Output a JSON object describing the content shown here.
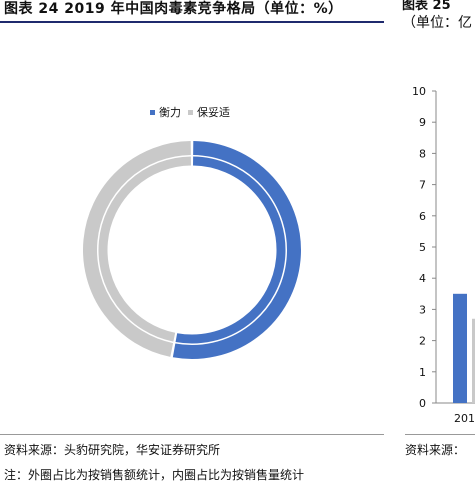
{
  "left_figure": {
    "title": "图表 24 2019 年中国肉毒素竞争格局（单位：%）"
  },
  "right_figure": {
    "title": "图表 25",
    "unit": "（单位：亿"
  },
  "chart_data": [
    {
      "type": "pie",
      "variant": "donut",
      "title": "图表 24 2019 年中国肉毒素竞争格局（单位：%）",
      "legend_position": "top",
      "series": [
        {
          "name": "衡力",
          "value": 53,
          "color": "#4472c4"
        },
        {
          "name": "保妥适",
          "value": 47,
          "color": "#c9c9c9"
        }
      ]
    },
    {
      "type": "bar",
      "categories": [
        "201"
      ],
      "series": [
        {
          "values": [
            3.5
          ],
          "color": "#4472c4"
        },
        {
          "values": [
            2.7
          ],
          "color": "#c9c9c9"
        }
      ],
      "ylim": [
        0,
        10
      ],
      "yticks": [
        "0",
        "1",
        "2",
        "3",
        "4",
        "5",
        "6",
        "7",
        "8",
        "9",
        "10"
      ]
    }
  ],
  "footer": {
    "source_left": "资料来源：头豹研究院，华安证券研究所",
    "source_right": "资料来源：",
    "note": "注：外圈占比为按销售额统计，内圈占比为按销售量统计"
  }
}
